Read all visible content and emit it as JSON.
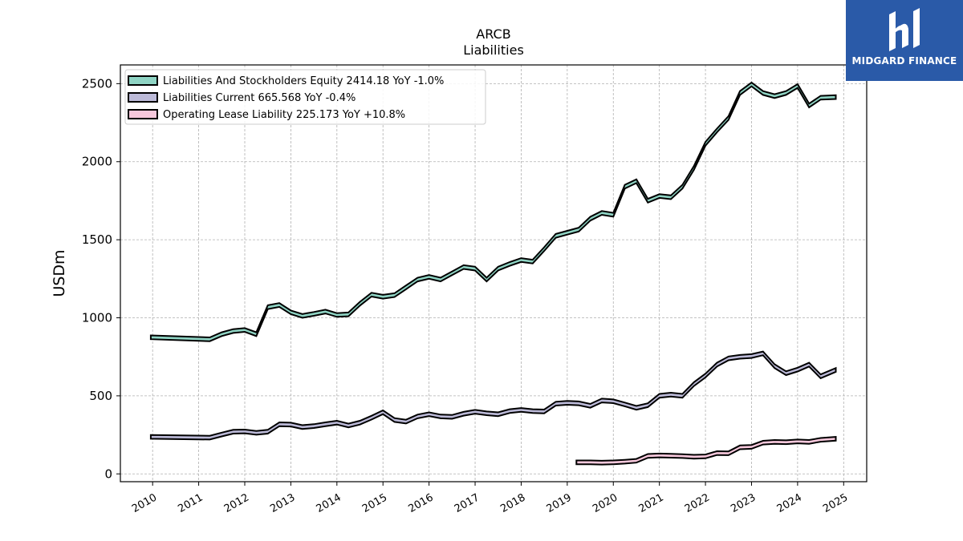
{
  "chart_data": {
    "type": "line",
    "title": "ARCB",
    "subtitle": "Liabilities",
    "xlabel": "",
    "ylabel": "USDm",
    "xlim": [
      2009.3,
      2025.5
    ],
    "ylim": [
      -50,
      2620
    ],
    "x_ticks": [
      "2010",
      "2011",
      "2012",
      "2013",
      "2014",
      "2015",
      "2016",
      "2017",
      "2018",
      "2019",
      "2020",
      "2021",
      "2022",
      "2023",
      "2024",
      "2025"
    ],
    "y_ticks": [
      0,
      500,
      1000,
      1500,
      2000,
      2500
    ],
    "grid": true,
    "legend_position": "top-left",
    "series": [
      {
        "name": "Liabilities And Stockholders Equity  2414.18 YoY -1.0%",
        "color": "#8fd4c4",
        "points": [
          [
            2009.96,
            875
          ],
          [
            2011.24,
            862
          ],
          [
            2011.5,
            895
          ],
          [
            2011.75,
            915
          ],
          [
            2012.0,
            922
          ],
          [
            2012.25,
            895
          ],
          [
            2012.5,
            1068
          ],
          [
            2012.75,
            1082
          ],
          [
            2013.0,
            1035
          ],
          [
            2013.25,
            1012
          ],
          [
            2013.5,
            1025
          ],
          [
            2013.75,
            1040
          ],
          [
            2014.0,
            1018
          ],
          [
            2014.25,
            1022
          ],
          [
            2014.5,
            1090
          ],
          [
            2014.75,
            1148
          ],
          [
            2015.0,
            1135
          ],
          [
            2015.25,
            1145
          ],
          [
            2015.5,
            1195
          ],
          [
            2015.75,
            1245
          ],
          [
            2016.0,
            1262
          ],
          [
            2016.25,
            1245
          ],
          [
            2016.5,
            1285
          ],
          [
            2016.75,
            1325
          ],
          [
            2017.0,
            1315
          ],
          [
            2017.25,
            1245
          ],
          [
            2017.5,
            1315
          ],
          [
            2017.75,
            1345
          ],
          [
            2018.0,
            1370
          ],
          [
            2018.25,
            1360
          ],
          [
            2018.5,
            1440
          ],
          [
            2018.75,
            1525
          ],
          [
            2019.0,
            1545
          ],
          [
            2019.25,
            1565
          ],
          [
            2019.5,
            1635
          ],
          [
            2019.75,
            1672
          ],
          [
            2020.0,
            1660
          ],
          [
            2020.25,
            1840
          ],
          [
            2020.5,
            1875
          ],
          [
            2020.75,
            1750
          ],
          [
            2021.0,
            1780
          ],
          [
            2021.25,
            1772
          ],
          [
            2021.5,
            1840
          ],
          [
            2021.75,
            1960
          ],
          [
            2022.0,
            2115
          ],
          [
            2022.25,
            2200
          ],
          [
            2022.5,
            2280
          ],
          [
            2022.75,
            2440
          ],
          [
            2023.0,
            2495
          ],
          [
            2023.25,
            2440
          ],
          [
            2023.5,
            2420
          ],
          [
            2023.75,
            2440
          ],
          [
            2024.0,
            2485
          ],
          [
            2024.25,
            2360
          ],
          [
            2024.5,
            2410
          ],
          [
            2024.83,
            2414
          ]
        ]
      },
      {
        "name": "Liabilities Current  665.568 YoY -0.4%",
        "color": "#bcbad8",
        "points": [
          [
            2009.96,
            237
          ],
          [
            2011.24,
            232
          ],
          [
            2011.5,
            252
          ],
          [
            2011.75,
            270
          ],
          [
            2012.0,
            272
          ],
          [
            2012.25,
            263
          ],
          [
            2012.5,
            270
          ],
          [
            2012.75,
            318
          ],
          [
            2013.0,
            316
          ],
          [
            2013.25,
            300
          ],
          [
            2013.5,
            306
          ],
          [
            2013.75,
            318
          ],
          [
            2014.0,
            328
          ],
          [
            2014.25,
            310
          ],
          [
            2014.5,
            328
          ],
          [
            2014.75,
            360
          ],
          [
            2015.0,
            395
          ],
          [
            2015.25,
            345
          ],
          [
            2015.5,
            335
          ],
          [
            2015.75,
            368
          ],
          [
            2016.0,
            382
          ],
          [
            2016.25,
            368
          ],
          [
            2016.5,
            365
          ],
          [
            2016.75,
            385
          ],
          [
            2017.0,
            398
          ],
          [
            2017.25,
            388
          ],
          [
            2017.5,
            382
          ],
          [
            2017.75,
            402
          ],
          [
            2018.0,
            410
          ],
          [
            2018.25,
            402
          ],
          [
            2018.5,
            400
          ],
          [
            2018.75,
            450
          ],
          [
            2019.0,
            455
          ],
          [
            2019.25,
            452
          ],
          [
            2019.5,
            436
          ],
          [
            2019.75,
            470
          ],
          [
            2020.0,
            465
          ],
          [
            2020.25,
            445
          ],
          [
            2020.5,
            423
          ],
          [
            2020.75,
            440
          ],
          [
            2021.0,
            500
          ],
          [
            2021.25,
            508
          ],
          [
            2021.5,
            500
          ],
          [
            2021.75,
            575
          ],
          [
            2022.0,
            630
          ],
          [
            2022.25,
            700
          ],
          [
            2022.5,
            740
          ],
          [
            2022.75,
            750
          ],
          [
            2023.0,
            755
          ],
          [
            2023.25,
            772
          ],
          [
            2023.5,
            690
          ],
          [
            2023.75,
            645
          ],
          [
            2024.0,
            668
          ],
          [
            2024.25,
            700
          ],
          [
            2024.5,
            625
          ],
          [
            2024.83,
            666
          ]
        ]
      },
      {
        "name": "Operating Lease Liability  225.173 YoY +10.8%",
        "color": "#f7c8dc",
        "points": [
          [
            2019.2,
            74
          ],
          [
            2019.5,
            74
          ],
          [
            2019.75,
            72
          ],
          [
            2020.0,
            74
          ],
          [
            2020.25,
            78
          ],
          [
            2020.5,
            84
          ],
          [
            2020.75,
            115
          ],
          [
            2021.0,
            118
          ],
          [
            2021.25,
            116
          ],
          [
            2021.5,
            114
          ],
          [
            2021.75,
            110
          ],
          [
            2022.0,
            112
          ],
          [
            2022.25,
            133
          ],
          [
            2022.5,
            132
          ],
          [
            2022.75,
            170
          ],
          [
            2023.0,
            173
          ],
          [
            2023.25,
            200
          ],
          [
            2023.5,
            205
          ],
          [
            2023.75,
            203
          ],
          [
            2024.0,
            208
          ],
          [
            2024.25,
            205
          ],
          [
            2024.5,
            218
          ],
          [
            2024.83,
            225
          ]
        ]
      }
    ]
  },
  "logo": {
    "text": "MIDGARD FINANCE",
    "bg_color": "#2a5aa8"
  }
}
